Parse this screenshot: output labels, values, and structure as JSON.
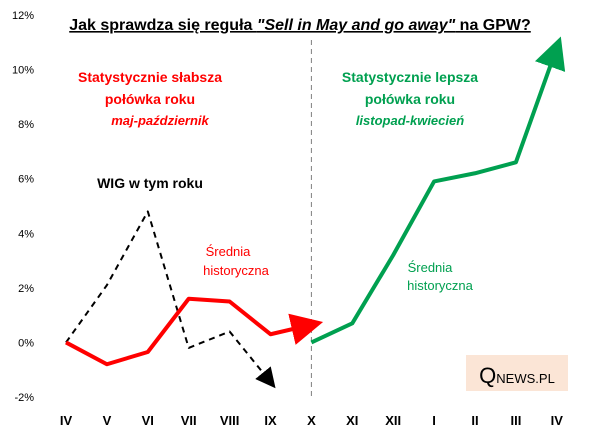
{
  "chart_data": {
    "type": "line",
    "title_prefix": "Jak sprawdza się reguła ",
    "title_italic": "\"Sell in May and go away\"",
    "title_suffix": " na GPW?",
    "categories": [
      "IV",
      "V",
      "VI",
      "VII",
      "VIII",
      "IX",
      "X",
      "XI",
      "XII",
      "I",
      "II",
      "III",
      "IV"
    ],
    "y_ticks": [
      "-2%",
      "0%",
      "2%",
      "4%",
      "6%",
      "8%",
      "10%",
      "12%"
    ],
    "ylim": [
      -2,
      12
    ],
    "grid": false,
    "series": [
      {
        "name": "WIG w tym roku",
        "color": "#000000",
        "style": "dashed",
        "points": [
          [
            0,
            0.0
          ],
          [
            1,
            2.1
          ],
          [
            2,
            4.8
          ],
          [
            3,
            -0.2
          ],
          [
            4,
            0.4
          ],
          [
            5,
            -1.45
          ]
        ]
      },
      {
        "name": "Średnia historyczna",
        "color": "#ff0000",
        "style": "solid",
        "points": [
          [
            0,
            0.0
          ],
          [
            1,
            -0.8
          ],
          [
            2,
            -0.35
          ],
          [
            3,
            1.6
          ],
          [
            4,
            1.5
          ],
          [
            5,
            0.3
          ],
          [
            6,
            0.65
          ]
        ]
      },
      {
        "name": "Średnia historyczna",
        "color": "#00a050",
        "style": "solid",
        "points": [
          [
            6,
            0.0
          ],
          [
            7,
            0.7
          ],
          [
            8,
            3.2
          ],
          [
            9,
            5.9
          ],
          [
            10,
            6.2
          ],
          [
            11,
            6.6
          ],
          [
            12,
            10.8
          ]
        ]
      }
    ],
    "divider_category": "X",
    "annotations": {
      "weak_title": "Statystycznie słabsza",
      "weak_title2": "połówka roku",
      "weak_sub": "maj-październik",
      "strong_title": "Statystycznie lepsza",
      "strong_title2": "połówka roku",
      "strong_sub": "listopad-kwiecień",
      "wig_label": "WIG w tym roku",
      "red_avg_1": "Średnia",
      "red_avg_2": "historyczna",
      "green_avg_1": "Średnia",
      "green_avg_2": "historyczna"
    },
    "colors": {
      "red": "#ff0000",
      "green": "#00a050",
      "black": "#000000"
    }
  },
  "logo": {
    "big": "Q",
    "rest": "NEWS.PL",
    "bg": "#fbe5d6"
  }
}
